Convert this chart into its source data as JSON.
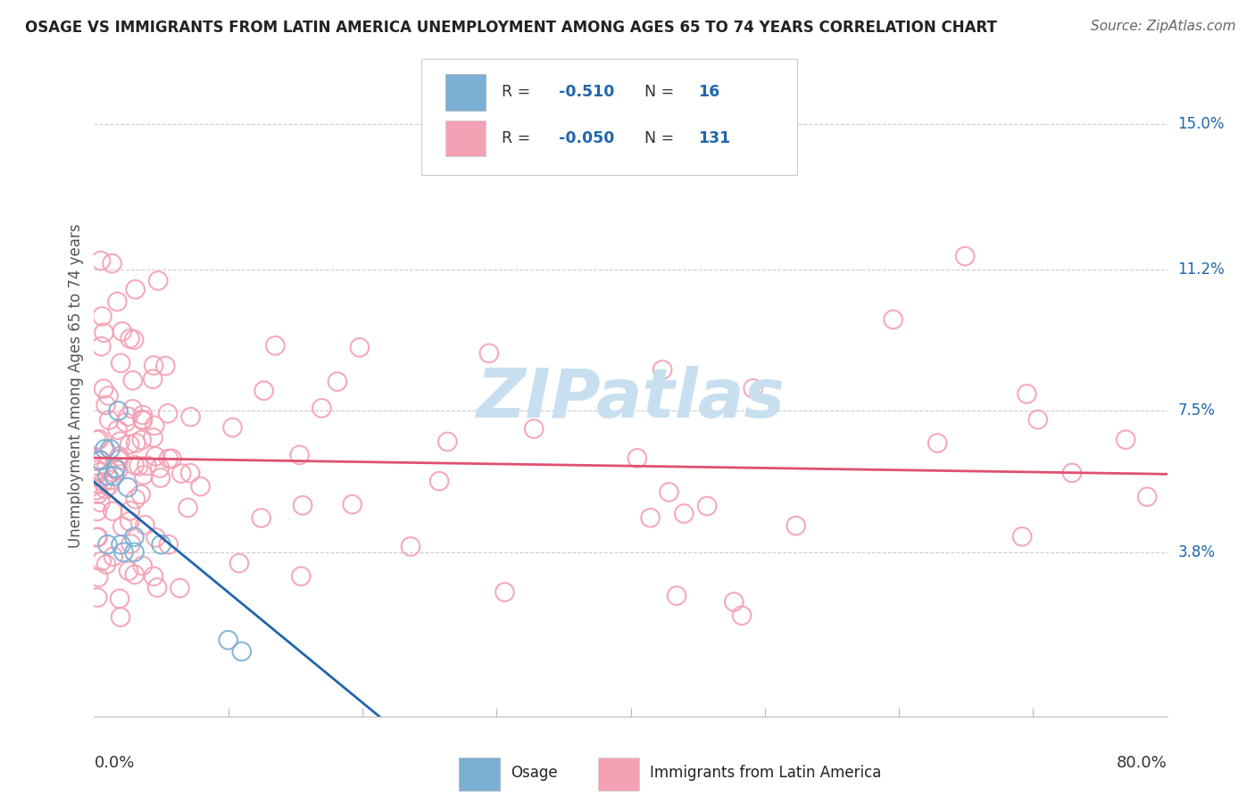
{
  "title": "OSAGE VS IMMIGRANTS FROM LATIN AMERICA UNEMPLOYMENT AMONG AGES 65 TO 74 YEARS CORRELATION CHART",
  "source": "Source: ZipAtlas.com",
  "ylabel": "Unemployment Among Ages 65 to 74 years",
  "xlim": [
    0.0,
    0.8
  ],
  "ylim": [
    -0.005,
    0.168
  ],
  "yticks": [
    0.038,
    0.075,
    0.112,
    0.15
  ],
  "ytick_labels": [
    "3.8%",
    "7.5%",
    "11.2%",
    "15.0%"
  ],
  "xtick_labels_left": "0.0%",
  "xtick_labels_right": "80.0%",
  "watermark": "ZIPatlas",
  "osage_R": -0.51,
  "osage_N": 16,
  "osage_R_str": "-0.510",
  "osage_N_str": "16",
  "latin_R": -0.05,
  "latin_N": 131,
  "latin_R_str": "-0.050",
  "latin_N_str": "131",
  "osage_color": "#7bafd4",
  "osage_line_color": "#2166ac",
  "latin_color": "#f4a0b5",
  "latin_line_color": "#e05070",
  "background_color": "#ffffff",
  "grid_color": "#cccccc",
  "title_color": "#222222",
  "axis_label_color": "#555555",
  "ytick_color": "#2166ac",
  "source_color": "#666666",
  "watermark_color": "#c8dff0",
  "legend_color": "#2166ac",
  "seed": 137
}
